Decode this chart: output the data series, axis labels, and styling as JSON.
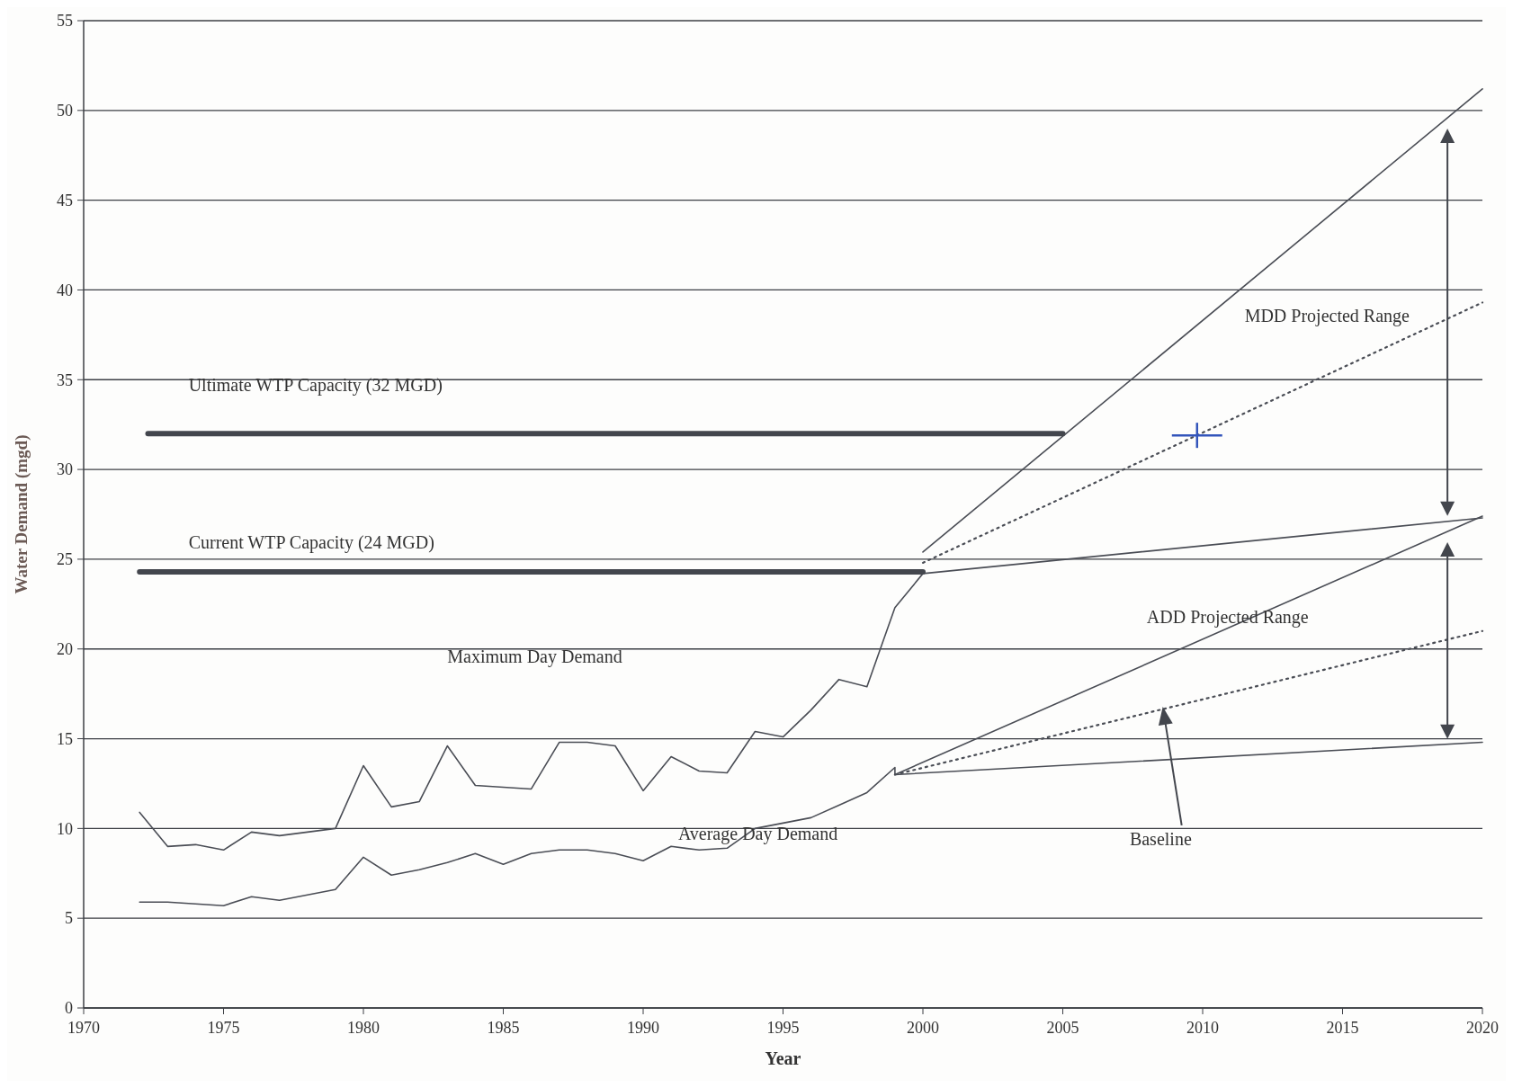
{
  "chart_data": {
    "type": "line",
    "xlabel": "Year",
    "ylabel": "Water Demand (mgd)",
    "xlim": [
      1970,
      2020
    ],
    "xticks": [
      1970,
      1975,
      1980,
      1985,
      1990,
      1995,
      2000,
      2005,
      2010,
      2015,
      2020
    ],
    "ylim": [
      0,
      55
    ],
    "yticks": [
      0,
      5,
      10,
      15,
      20,
      25,
      30,
      35,
      40,
      45,
      50,
      55
    ],
    "grid": "y",
    "marker": "none",
    "series": [
      {
        "color": "#4a4d55",
        "x": [
          1972,
          1973,
          1974,
          1975,
          1976,
          1977,
          1978,
          1979,
          1980,
          1981,
          1982,
          1983,
          1984,
          1985,
          1986,
          1987,
          1988,
          1989,
          1990,
          1991,
          1992,
          1993,
          1994,
          1995,
          1996,
          1997,
          1998,
          1999,
          2000,
          2020
        ],
        "values": [
          10.9,
          9.0,
          9.1,
          8.8,
          9.8,
          9.6,
          9.8,
          10.0,
          13.5,
          11.2,
          11.5,
          14.6,
          12.4,
          12.3,
          12.2,
          14.8,
          14.8,
          14.6,
          12.1,
          14.0,
          13.2,
          13.1,
          15.4,
          15.1,
          16.6,
          18.3,
          17.9,
          22.3,
          24.2,
          27.3
        ]
      },
      {
        "color": "#4a4d55",
        "x": [
          1972,
          1973,
          1974,
          1975,
          1976,
          1977,
          1978,
          1979,
          1980,
          1981,
          1982,
          1983,
          1984,
          1985,
          1986,
          1987,
          1988,
          1989,
          1990,
          1991,
          1992,
          1993,
          1994,
          1995,
          1996,
          1997,
          1998,
          1999,
          1999,
          2020
        ],
        "values": [
          5.9,
          5.9,
          5.8,
          5.7,
          6.2,
          6.0,
          6.3,
          6.6,
          8.4,
          7.4,
          7.7,
          8.1,
          8.6,
          8.0,
          8.6,
          8.8,
          8.8,
          8.6,
          8.2,
          9.0,
          8.8,
          8.9,
          10.0,
          10.3,
          10.6,
          11.3,
          12.0,
          13.4,
          13.0,
          14.8
        ]
      },
      {
        "color": "#4a4d55",
        "x": [
          2000,
          2020
        ],
        "values": [
          25.4,
          51.2
        ]
      },
      {
        "color": "#4a4d55",
        "x": [
          2000,
          2020
        ],
        "values": [
          24.8,
          39.3
        ],
        "line_style": "dotted"
      },
      {
        "color": "#4a4d55",
        "x": [
          1999,
          2020
        ],
        "values": [
          13.0,
          27.4
        ]
      },
      {
        "color": "#4a4d55",
        "x": [
          1999,
          2020
        ],
        "values": [
          13.0,
          21.0
        ],
        "line_style": "dotted"
      },
      {
        "color": "#43464d",
        "x": [
          1972.3,
          2005
        ],
        "values": [
          32,
          32
        ]
      },
      {
        "color": "#43464d",
        "x": [
          1972,
          2000
        ],
        "values": [
          24.3,
          24.3
        ]
      }
    ],
    "annotations": [
      "Ultimate WTP Capacity (32 MGD)",
      "Current WTP Capacity (24 MGD)",
      "Maximum Day Demand",
      "Average Day Demand",
      "MDD Projected  Range",
      "ADD Projected Range",
      "Baseline"
    ]
  }
}
